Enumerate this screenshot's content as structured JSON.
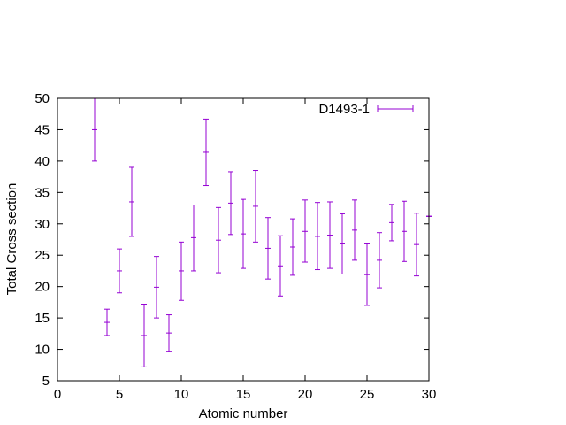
{
  "chart_data": {
    "type": "scatter",
    "title": "",
    "xlabel": "Atomic number",
    "ylabel": "Total Cross section",
    "xlim": [
      0,
      30
    ],
    "ylim": [
      5,
      50
    ],
    "x_ticks": [
      0,
      5,
      10,
      15,
      20,
      25,
      30
    ],
    "y_ticks": [
      5,
      10,
      15,
      20,
      25,
      30,
      35,
      40,
      45,
      50
    ],
    "grid": false,
    "legend_position": "top-right",
    "series": [
      {
        "name": "D1493-1",
        "color": "#9400d3",
        "points": [
          {
            "x": 3,
            "y": 45.0,
            "ylow": 40.0,
            "yhigh": 50.0
          },
          {
            "x": 4,
            "y": 14.3,
            "ylow": 12.2,
            "yhigh": 16.4
          },
          {
            "x": 5,
            "y": 22.5,
            "ylow": 19.0,
            "yhigh": 26.0
          },
          {
            "x": 6,
            "y": 33.5,
            "ylow": 28.0,
            "yhigh": 39.0
          },
          {
            "x": 7,
            "y": 12.2,
            "ylow": 7.2,
            "yhigh": 17.2
          },
          {
            "x": 8,
            "y": 19.9,
            "ylow": 15.0,
            "yhigh": 24.8
          },
          {
            "x": 9,
            "y": 12.6,
            "ylow": 9.7,
            "yhigh": 15.5
          },
          {
            "x": 10,
            "y": 22.5,
            "ylow": 17.8,
            "yhigh": 27.1
          },
          {
            "x": 11,
            "y": 27.8,
            "ylow": 22.5,
            "yhigh": 33.0
          },
          {
            "x": 12,
            "y": 41.4,
            "ylow": 36.1,
            "yhigh": 46.7
          },
          {
            "x": 13,
            "y": 27.4,
            "ylow": 22.2,
            "yhigh": 32.6
          },
          {
            "x": 14,
            "y": 33.3,
            "ylow": 28.3,
            "yhigh": 38.3
          },
          {
            "x": 15,
            "y": 28.4,
            "ylow": 22.9,
            "yhigh": 33.9
          },
          {
            "x": 16,
            "y": 32.8,
            "ylow": 27.1,
            "yhigh": 38.5
          },
          {
            "x": 17,
            "y": 26.1,
            "ylow": 21.2,
            "yhigh": 31.0
          },
          {
            "x": 18,
            "y": 23.3,
            "ylow": 18.5,
            "yhigh": 28.1
          },
          {
            "x": 19,
            "y": 26.3,
            "ylow": 21.8,
            "yhigh": 30.8
          },
          {
            "x": 20,
            "y": 28.8,
            "ylow": 23.9,
            "yhigh": 33.8
          },
          {
            "x": 21,
            "y": 28.0,
            "ylow": 22.7,
            "yhigh": 33.4
          },
          {
            "x": 22,
            "y": 28.2,
            "ylow": 22.9,
            "yhigh": 33.5
          },
          {
            "x": 23,
            "y": 26.8,
            "ylow": 22.0,
            "yhigh": 31.6
          },
          {
            "x": 24,
            "y": 29.0,
            "ylow": 24.2,
            "yhigh": 33.8
          },
          {
            "x": 25,
            "y": 21.9,
            "ylow": 17.0,
            "yhigh": 26.8
          },
          {
            "x": 26,
            "y": 24.2,
            "ylow": 19.8,
            "yhigh": 28.6
          },
          {
            "x": 27,
            "y": 30.2,
            "ylow": 27.3,
            "yhigh": 33.1
          },
          {
            "x": 28,
            "y": 28.8,
            "ylow": 24.0,
            "yhigh": 33.6
          },
          {
            "x": 29,
            "y": 26.7,
            "ylow": 21.7,
            "yhigh": 31.7
          },
          {
            "x": 30,
            "y": 31.2,
            "ylow": 31.2,
            "yhigh": 31.2
          }
        ]
      }
    ]
  }
}
